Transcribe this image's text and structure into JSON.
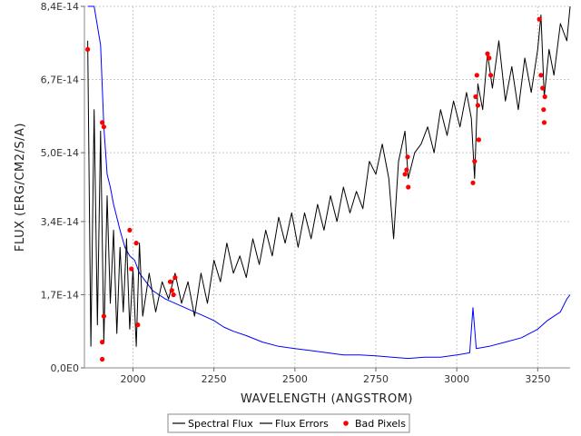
{
  "chart_data": {
    "type": "line",
    "xlabel": "WAVELENGTH (ANGSTROM)",
    "ylabel": "FLUX (ERG/CM2/S/A)",
    "xlim": [
      1850,
      3350
    ],
    "ylim": [
      0,
      8.4e-14
    ],
    "x_ticks": [
      2000,
      2250,
      2500,
      2750,
      3000,
      3250
    ],
    "x_tick_labels": [
      "2000",
      "2250",
      "2500",
      "2750",
      "3000",
      "3250"
    ],
    "y_ticks": [
      0,
      1.7e-14,
      3.4e-14,
      5e-14,
      6.7e-14,
      8.4e-14
    ],
    "y_tick_labels": [
      "0,0E0",
      "1,7E-14",
      "3,4E-14",
      "5,0E-14",
      "6,7E-14",
      "8,4E-14"
    ],
    "grid": true,
    "legend_position": "bottom-center",
    "series": [
      {
        "name": "Spectral Flux",
        "color": "#000000",
        "points": [
          [
            1860,
            7.6e-14
          ],
          [
            1870,
            5e-15
          ],
          [
            1880,
            6e-14
          ],
          [
            1890,
            1e-14
          ],
          [
            1900,
            5.5e-14
          ],
          [
            1910,
            6e-15
          ],
          [
            1920,
            4e-14
          ],
          [
            1930,
            1.5e-14
          ],
          [
            1940,
            3.2e-14
          ],
          [
            1950,
            8e-15
          ],
          [
            1960,
            2.8e-14
          ],
          [
            1970,
            1.3e-14
          ],
          [
            1980,
            3e-14
          ],
          [
            1990,
            9e-15
          ],
          [
            2000,
            2.3e-14
          ],
          [
            2010,
            5e-15
          ],
          [
            2020,
            2.9e-14
          ],
          [
            2030,
            1.2e-14
          ],
          [
            2050,
            2.2e-14
          ],
          [
            2070,
            1.3e-14
          ],
          [
            2090,
            2e-14
          ],
          [
            2110,
            1.6e-14
          ],
          [
            2130,
            2.2e-14
          ],
          [
            2150,
            1.5e-14
          ],
          [
            2170,
            2e-14
          ],
          [
            2190,
            1.2e-14
          ],
          [
            2210,
            2.2e-14
          ],
          [
            2230,
            1.5e-14
          ],
          [
            2250,
            2.5e-14
          ],
          [
            2270,
            2e-14
          ],
          [
            2290,
            2.9e-14
          ],
          [
            2310,
            2.2e-14
          ],
          [
            2330,
            2.6e-14
          ],
          [
            2350,
            2.1e-14
          ],
          [
            2370,
            3e-14
          ],
          [
            2390,
            2.4e-14
          ],
          [
            2410,
            3.2e-14
          ],
          [
            2430,
            2.6e-14
          ],
          [
            2450,
            3.5e-14
          ],
          [
            2470,
            2.9e-14
          ],
          [
            2490,
            3.6e-14
          ],
          [
            2510,
            2.8e-14
          ],
          [
            2530,
            3.6e-14
          ],
          [
            2550,
            3e-14
          ],
          [
            2570,
            3.8e-14
          ],
          [
            2590,
            3.2e-14
          ],
          [
            2610,
            4e-14
          ],
          [
            2630,
            3.4e-14
          ],
          [
            2650,
            4.2e-14
          ],
          [
            2670,
            3.6e-14
          ],
          [
            2690,
            4.1e-14
          ],
          [
            2710,
            3.7e-14
          ],
          [
            2730,
            4.8e-14
          ],
          [
            2750,
            4.5e-14
          ],
          [
            2770,
            5.2e-14
          ],
          [
            2790,
            4.4e-14
          ],
          [
            2805,
            3e-14
          ],
          [
            2820,
            4.8e-14
          ],
          [
            2840,
            5.5e-14
          ],
          [
            2850,
            4.4e-14
          ],
          [
            2870,
            5e-14
          ],
          [
            2890,
            5.2e-14
          ],
          [
            2910,
            5.6e-14
          ],
          [
            2930,
            5e-14
          ],
          [
            2950,
            6e-14
          ],
          [
            2970,
            5.4e-14
          ],
          [
            2990,
            6.2e-14
          ],
          [
            3010,
            5.6e-14
          ],
          [
            3030,
            6.4e-14
          ],
          [
            3045,
            5.8e-14
          ],
          [
            3055,
            4.4e-14
          ],
          [
            3065,
            6.6e-14
          ],
          [
            3080,
            6e-14
          ],
          [
            3095,
            7.3e-14
          ],
          [
            3110,
            6.5e-14
          ],
          [
            3130,
            7.6e-14
          ],
          [
            3150,
            6.2e-14
          ],
          [
            3170,
            7e-14
          ],
          [
            3190,
            6e-14
          ],
          [
            3210,
            7.2e-14
          ],
          [
            3230,
            6.4e-14
          ],
          [
            3250,
            7.4e-14
          ],
          [
            3260,
            8.2e-14
          ],
          [
            3270,
            6.3e-14
          ],
          [
            3285,
            7.4e-14
          ],
          [
            3300,
            6.8e-14
          ],
          [
            3320,
            8e-14
          ],
          [
            3340,
            7.6e-14
          ],
          [
            3350,
            8.4e-14
          ]
        ]
      },
      {
        "name": "Flux Errors",
        "color": "#0000ff",
        "points": [
          [
            1860,
            8.4e-14
          ],
          [
            1880,
            8.4e-14
          ],
          [
            1900,
            7.5e-14
          ],
          [
            1910,
            5.6e-14
          ],
          [
            1920,
            4.5e-14
          ],
          [
            1930,
            4.2e-14
          ],
          [
            1940,
            3.8e-14
          ],
          [
            1950,
            3.5e-14
          ],
          [
            1960,
            3.2e-14
          ],
          [
            1975,
            2.8e-14
          ],
          [
            1990,
            2.6e-14
          ],
          [
            2005,
            2.5e-14
          ],
          [
            2020,
            2.2e-14
          ],
          [
            2040,
            2e-14
          ],
          [
            2060,
            1.8e-14
          ],
          [
            2080,
            1.7e-14
          ],
          [
            2100,
            1.6e-14
          ],
          [
            2130,
            1.5e-14
          ],
          [
            2160,
            1.4e-14
          ],
          [
            2190,
            1.3e-14
          ],
          [
            2220,
            1.2e-14
          ],
          [
            2250,
            1.1e-14
          ],
          [
            2280,
            9.5e-15
          ],
          [
            2310,
            8.5e-15
          ],
          [
            2350,
            7.5e-15
          ],
          [
            2400,
            6e-15
          ],
          [
            2450,
            5e-15
          ],
          [
            2500,
            4.5e-15
          ],
          [
            2550,
            4e-15
          ],
          [
            2600,
            3.5e-15
          ],
          [
            2650,
            3e-15
          ],
          [
            2700,
            3e-15
          ],
          [
            2750,
            2.8e-15
          ],
          [
            2800,
            2.5e-15
          ],
          [
            2850,
            2.2e-15
          ],
          [
            2900,
            2.5e-15
          ],
          [
            2950,
            2.5e-15
          ],
          [
            3000,
            3e-15
          ],
          [
            3040,
            3.5e-15
          ],
          [
            3050,
            1.4e-14
          ],
          [
            3060,
            4.5e-15
          ],
          [
            3100,
            5e-15
          ],
          [
            3150,
            6e-15
          ],
          [
            3200,
            7e-15
          ],
          [
            3250,
            9e-15
          ],
          [
            3280,
            1.1e-14
          ],
          [
            3300,
            1.2e-14
          ],
          [
            3320,
            1.3e-14
          ],
          [
            3340,
            1.6e-14
          ],
          [
            3350,
            1.7e-14
          ]
        ]
      },
      {
        "name": "Bad Pixels",
        "color": "#ff0000",
        "marker": "circle",
        "points": [
          [
            1860,
            7.4e-14
          ],
          [
            1905,
            5.7e-14
          ],
          [
            1910,
            5.6e-14
          ],
          [
            1905,
            6e-15
          ],
          [
            1910,
            1.2e-14
          ],
          [
            1905,
            2e-15
          ],
          [
            1990,
            3.2e-14
          ],
          [
            1995,
            2.3e-14
          ],
          [
            2010,
            2.9e-14
          ],
          [
            2015,
            1e-14
          ],
          [
            2115,
            2e-14
          ],
          [
            2120,
            1.8e-14
          ],
          [
            2125,
            1.7e-14
          ],
          [
            2130,
            2.1e-14
          ],
          [
            2840,
            4.5e-14
          ],
          [
            2845,
            4.6e-14
          ],
          [
            2848,
            4.9e-14
          ],
          [
            2850,
            4.2e-14
          ],
          [
            3050,
            4.3e-14
          ],
          [
            3055,
            4.8e-14
          ],
          [
            3058,
            6.3e-14
          ],
          [
            3062,
            6.8e-14
          ],
          [
            3065,
            6.1e-14
          ],
          [
            3068,
            5.3e-14
          ],
          [
            3095,
            7.3e-14
          ],
          [
            3100,
            7.2e-14
          ],
          [
            3105,
            6.8e-14
          ],
          [
            3255,
            8.1e-14
          ],
          [
            3260,
            6.8e-14
          ],
          [
            3265,
            6.5e-14
          ],
          [
            3268,
            6e-14
          ],
          [
            3270,
            5.7e-14
          ],
          [
            3272,
            6.3e-14
          ]
        ]
      }
    ]
  }
}
